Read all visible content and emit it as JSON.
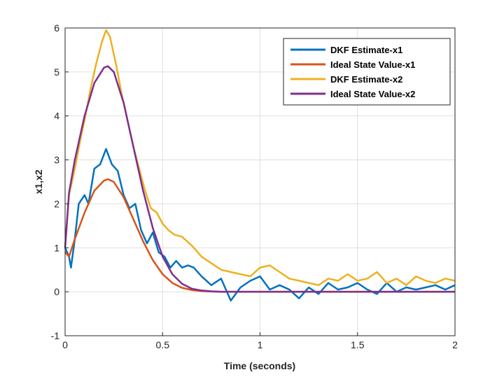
{
  "chart_data": {
    "type": "line",
    "xlabel": "Time (seconds)",
    "ylabel": "x1,x2",
    "xlim": [
      0,
      2
    ],
    "ylim": [
      -1,
      6
    ],
    "xticks": [
      0,
      0.5,
      1,
      1.5,
      2
    ],
    "xtick_labels": [
      "0",
      "0.5",
      "1",
      "1.5",
      "2"
    ],
    "yticks": [
      -1,
      0,
      1,
      2,
      3,
      4,
      5,
      6
    ],
    "ytick_labels": [
      "-1",
      "0",
      "1",
      "2",
      "3",
      "4",
      "5",
      "6"
    ],
    "grid": true,
    "legend_position": "top-right",
    "series": [
      {
        "name": "DKF Estimate-x1",
        "color": "#0072BD",
        "x": [
          0,
          0.02,
          0.03,
          0.05,
          0.07,
          0.1,
          0.12,
          0.15,
          0.18,
          0.21,
          0.24,
          0.27,
          0.3,
          0.33,
          0.36,
          0.39,
          0.42,
          0.45,
          0.48,
          0.51,
          0.54,
          0.57,
          0.6,
          0.63,
          0.66,
          0.7,
          0.75,
          0.8,
          0.85,
          0.9,
          0.95,
          1.0,
          1.05,
          1.1,
          1.15,
          1.2,
          1.25,
          1.3,
          1.35,
          1.4,
          1.45,
          1.5,
          1.55,
          1.6,
          1.65,
          1.7,
          1.75,
          1.8,
          1.85,
          1.9,
          1.95,
          2.0
        ],
        "values": [
          1.0,
          0.8,
          0.55,
          1.2,
          2.0,
          2.2,
          2.0,
          2.8,
          2.9,
          3.25,
          2.9,
          2.75,
          2.2,
          1.9,
          2.0,
          1.4,
          1.1,
          1.35,
          0.9,
          0.8,
          0.55,
          0.7,
          0.55,
          0.6,
          0.55,
          0.35,
          0.15,
          0.3,
          -0.2,
          0.1,
          0.25,
          0.35,
          0.05,
          0.15,
          0.05,
          -0.15,
          0.1,
          -0.05,
          0.2,
          0.05,
          0.1,
          0.2,
          0.05,
          -0.05,
          0.2,
          0.0,
          0.1,
          0.05,
          0.1,
          0.15,
          0.05,
          0.15
        ]
      },
      {
        "name": "Ideal State Value-x1",
        "color": "#D95319",
        "x": [
          0,
          0.02,
          0.05,
          0.1,
          0.15,
          0.2,
          0.22,
          0.25,
          0.3,
          0.35,
          0.4,
          0.45,
          0.5,
          0.55,
          0.6,
          0.65,
          0.7,
          0.75,
          0.8,
          0.9,
          1.0,
          1.5,
          2.0
        ],
        "values": [
          0.9,
          0.8,
          1.2,
          1.8,
          2.3,
          2.53,
          2.56,
          2.5,
          2.15,
          1.65,
          1.15,
          0.72,
          0.4,
          0.2,
          0.09,
          0.04,
          0.015,
          0.005,
          0.0,
          0.0,
          0.0,
          0.0,
          0.0
        ]
      },
      {
        "name": "DKF Estimate-x2",
        "color": "#EDB120",
        "x": [
          0,
          0.02,
          0.05,
          0.08,
          0.1,
          0.13,
          0.16,
          0.19,
          0.21,
          0.23,
          0.26,
          0.29,
          0.32,
          0.35,
          0.38,
          0.41,
          0.44,
          0.47,
          0.5,
          0.53,
          0.56,
          0.6,
          0.65,
          0.7,
          0.75,
          0.8,
          0.85,
          0.9,
          0.95,
          1.0,
          1.05,
          1.1,
          1.15,
          1.2,
          1.25,
          1.3,
          1.35,
          1.4,
          1.45,
          1.5,
          1.55,
          1.6,
          1.65,
          1.7,
          1.75,
          1.8,
          1.85,
          1.9,
          1.95,
          2.0
        ],
        "values": [
          1.0,
          2.2,
          2.8,
          3.5,
          3.9,
          4.6,
          5.2,
          5.7,
          5.95,
          5.8,
          5.2,
          4.5,
          3.9,
          3.3,
          2.8,
          2.3,
          1.9,
          1.8,
          1.55,
          1.4,
          1.3,
          1.25,
          1.05,
          0.8,
          0.65,
          0.5,
          0.45,
          0.4,
          0.35,
          0.55,
          0.6,
          0.45,
          0.3,
          0.25,
          0.2,
          0.15,
          0.3,
          0.25,
          0.4,
          0.25,
          0.3,
          0.45,
          0.2,
          0.3,
          0.15,
          0.35,
          0.25,
          0.2,
          0.3,
          0.25
        ]
      },
      {
        "name": "Ideal State Value-x2",
        "color": "#7E2F8E",
        "x": [
          0,
          0.02,
          0.05,
          0.1,
          0.15,
          0.2,
          0.22,
          0.25,
          0.3,
          0.35,
          0.4,
          0.45,
          0.5,
          0.55,
          0.6,
          0.65,
          0.7,
          0.75,
          0.8,
          0.9,
          1.0,
          1.5,
          2.0
        ],
        "values": [
          1.0,
          2.25,
          3.0,
          4.0,
          4.75,
          5.1,
          5.13,
          5.0,
          4.3,
          3.3,
          2.3,
          1.45,
          0.8,
          0.4,
          0.18,
          0.07,
          0.03,
          0.01,
          0.0,
          0.0,
          0.0,
          0.0,
          0.0
        ]
      }
    ]
  }
}
